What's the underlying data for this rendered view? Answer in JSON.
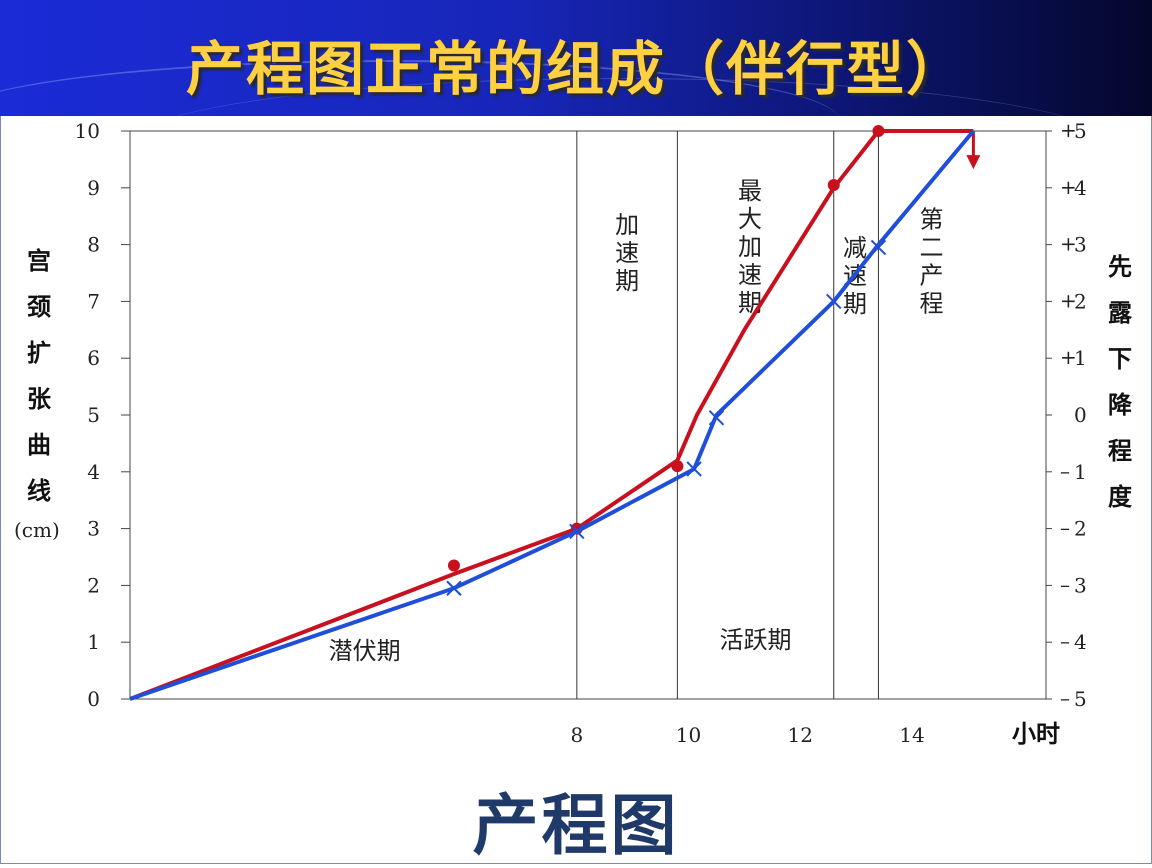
{
  "slide": {
    "title": "产程图正常的组成（伴行型）",
    "footer_title": "产程图",
    "left_axis_title": "宫颈扩张曲线",
    "left_axis_unit": "(cm)",
    "right_axis_title": "先露下降程度",
    "x_axis_unit": "小时"
  },
  "colors": {
    "title_bar": "#1726b8",
    "title_text": "#ffd040",
    "dilation_curve": "#c8101e",
    "descent_curve": "#1f4fd8",
    "zero_station": "#c8101e",
    "footer_text": "#1f3a68"
  },
  "chart_data": {
    "type": "line",
    "title": "",
    "xlabel": "小时",
    "ylabel": "宫颈扩张曲线 (cm)",
    "y2label": "先露下降程度",
    "xlim": [
      0,
      16.4
    ],
    "ylim": [
      0,
      10
    ],
    "y2lim": [
      -5,
      5
    ],
    "x_ticks": [
      {
        "value": 8,
        "label": "8"
      },
      {
        "value": 10,
        "label": "10"
      },
      {
        "value": 12,
        "label": "12"
      },
      {
        "value": 14,
        "label": "14"
      }
    ],
    "y_ticks": [
      "0",
      "1",
      "2",
      "3",
      "4",
      "5",
      "6",
      "7",
      "8",
      "9",
      "10"
    ],
    "y2_ticks": [
      "5",
      "4",
      "3",
      "2",
      "1",
      "0",
      "-1",
      "-2",
      "-3",
      "-4",
      "-5"
    ],
    "y2_highlight": "0",
    "phase_boundaries": [
      8,
      9.8,
      12.6,
      13.4
    ],
    "phases": [
      {
        "label": "潜伏期",
        "x": 4.2,
        "y": 0.7,
        "vertical": false
      },
      {
        "label": "活跃期",
        "x": 11.2,
        "y": 0.9,
        "vertical": false
      },
      {
        "label": "加速期",
        "x": 8.9,
        "y": 8.2,
        "vertical": true
      },
      {
        "label": "最大加速期",
        "x": 11.1,
        "y": 8.8,
        "vertical": true
      },
      {
        "label": "减速期",
        "x": 12.98,
        "y": 7.8,
        "vertical": true
      },
      {
        "label": "第二产程",
        "x": 14.35,
        "y": 8.3,
        "vertical": true
      }
    ],
    "series": [
      {
        "name": "宫颈扩张曲线",
        "color": "#c8101e",
        "marker": "dot",
        "points": [
          [
            0,
            0
          ],
          [
            5.8,
            2.2
          ],
          [
            8,
            3
          ],
          [
            9.8,
            4.2
          ],
          [
            10.15,
            5
          ],
          [
            11,
            6.5
          ],
          [
            12.6,
            9
          ],
          [
            13.4,
            10
          ],
          [
            15.1,
            10
          ]
        ],
        "markers": [
          [
            5.8,
            2.35
          ],
          [
            8,
            3
          ],
          [
            9.8,
            4.1
          ],
          [
            12.6,
            9.05
          ],
          [
            13.4,
            10
          ]
        ],
        "end_arrow": {
          "x": 15.1,
          "from": 10,
          "to": 9.4
        }
      },
      {
        "name": "先露下降程度",
        "color": "#1f4fd8",
        "marker": "cross",
        "points": [
          [
            0,
            0
          ],
          [
            5.8,
            1.95
          ],
          [
            8,
            2.95
          ],
          [
            10.1,
            4.05
          ],
          [
            10.5,
            5
          ],
          [
            12.6,
            7
          ],
          [
            13.4,
            8
          ],
          [
            15.1,
            10
          ]
        ],
        "markers": [
          [
            5.8,
            1.95
          ],
          [
            8,
            2.95
          ],
          [
            10.1,
            4.05
          ],
          [
            10.5,
            4.95
          ],
          [
            12.6,
            7
          ],
          [
            13.4,
            7.95
          ]
        ]
      }
    ]
  }
}
